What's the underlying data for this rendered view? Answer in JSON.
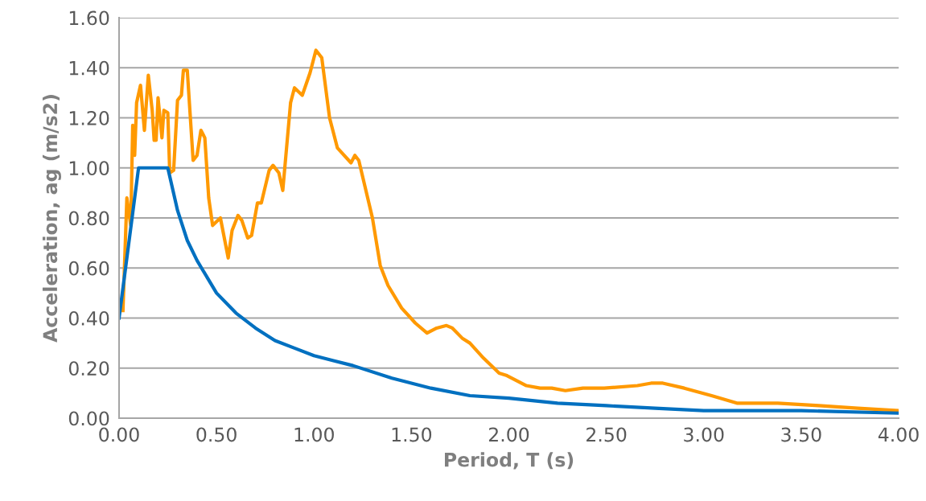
{
  "chart_data": {
    "type": "line",
    "xlabel": "Period, T (s)",
    "ylabel": "Acceleration, ag (m/s2)",
    "xlim": [
      0,
      4
    ],
    "ylim": [
      0,
      1.6
    ],
    "xticks": [
      {
        "value": 0,
        "label": "0.00"
      },
      {
        "value": 0.5,
        "label": "0.50"
      },
      {
        "value": 1,
        "label": "1.00"
      },
      {
        "value": 1.5,
        "label": "1.50"
      },
      {
        "value": 2,
        "label": "2.00"
      },
      {
        "value": 2.5,
        "label": "2.50"
      },
      {
        "value": 3,
        "label": "3.00"
      },
      {
        "value": 3.5,
        "label": "3.50"
      },
      {
        "value": 4,
        "label": "4.00"
      }
    ],
    "yticks": [
      {
        "value": 0,
        "label": "0.00"
      },
      {
        "value": 0.2,
        "label": "0.20"
      },
      {
        "value": 0.4,
        "label": "0.40"
      },
      {
        "value": 0.6,
        "label": "0.60"
      },
      {
        "value": 0.8,
        "label": "0.80"
      },
      {
        "value": 1,
        "label": "1.00"
      },
      {
        "value": 1.2,
        "label": "1.20"
      },
      {
        "value": 1.4,
        "label": "1.40"
      },
      {
        "value": 1.6,
        "label": "1.60"
      }
    ],
    "grid": "y",
    "marker": "none",
    "line_style": "solid",
    "series": [
      {
        "color": "#ff9900",
        "x": [
          0.02,
          0.04,
          0.06,
          0.07,
          0.08,
          0.09,
          0.11,
          0.13,
          0.15,
          0.17,
          0.18,
          0.19,
          0.2,
          0.22,
          0.23,
          0.25,
          0.26,
          0.28,
          0.3,
          0.32,
          0.33,
          0.35,
          0.38,
          0.4,
          0.42,
          0.44,
          0.46,
          0.48,
          0.52,
          0.56,
          0.58,
          0.61,
          0.63,
          0.66,
          0.68,
          0.71,
          0.73,
          0.77,
          0.79,
          0.82,
          0.84,
          0.88,
          0.9,
          0.94,
          0.98,
          1.01,
          1.04,
          1.08,
          1.12,
          1.19,
          1.21,
          1.23,
          1.3,
          1.34,
          1.38,
          1.45,
          1.52,
          1.58,
          1.63,
          1.68,
          1.71,
          1.76,
          1.8,
          1.87,
          1.95,
          1.99,
          2.09,
          2.16,
          2.22,
          2.29,
          2.38,
          2.49,
          2.66,
          2.73,
          2.76,
          2.79,
          2.9,
          3.04,
          3.17,
          3.38,
          3.59,
          3.79,
          4.0
        ],
        "values": [
          0.43,
          0.88,
          0.77,
          1.17,
          1.05,
          1.26,
          1.33,
          1.15,
          1.37,
          1.23,
          1.11,
          1.11,
          1.28,
          1.12,
          1.23,
          1.22,
          0.98,
          0.99,
          1.27,
          1.29,
          1.39,
          1.39,
          1.03,
          1.05,
          1.15,
          1.12,
          0.88,
          0.77,
          0.8,
          0.64,
          0.75,
          0.81,
          0.79,
          0.72,
          0.73,
          0.86,
          0.86,
          0.99,
          1.01,
          0.98,
          0.91,
          1.26,
          1.32,
          1.29,
          1.38,
          1.47,
          1.44,
          1.2,
          1.08,
          1.02,
          1.05,
          1.03,
          0.8,
          0.61,
          0.53,
          0.44,
          0.38,
          0.34,
          0.36,
          0.37,
          0.36,
          0.32,
          0.3,
          0.24,
          0.18,
          0.17,
          0.13,
          0.12,
          0.12,
          0.11,
          0.12,
          0.12,
          0.13,
          0.14,
          0.14,
          0.14,
          0.12,
          0.09,
          0.06,
          0.06,
          0.05,
          0.04,
          0.03
        ]
      },
      {
        "color": "#0070c0",
        "x": [
          0,
          0.1,
          0.25,
          0.3,
          0.35,
          0.4,
          0.5,
          0.6,
          0.7,
          0.8,
          0.9,
          1.0,
          1.1,
          1.2,
          1.4,
          1.6,
          1.8,
          2.0,
          2.25,
          2.5,
          2.75,
          3.0,
          3.5,
          4.0
        ],
        "values": [
          0.4,
          1.0,
          1.0,
          0.83,
          0.71,
          0.63,
          0.5,
          0.42,
          0.36,
          0.31,
          0.28,
          0.25,
          0.23,
          0.21,
          0.16,
          0.12,
          0.09,
          0.08,
          0.06,
          0.05,
          0.04,
          0.03,
          0.03,
          0.02
        ]
      }
    ]
  }
}
